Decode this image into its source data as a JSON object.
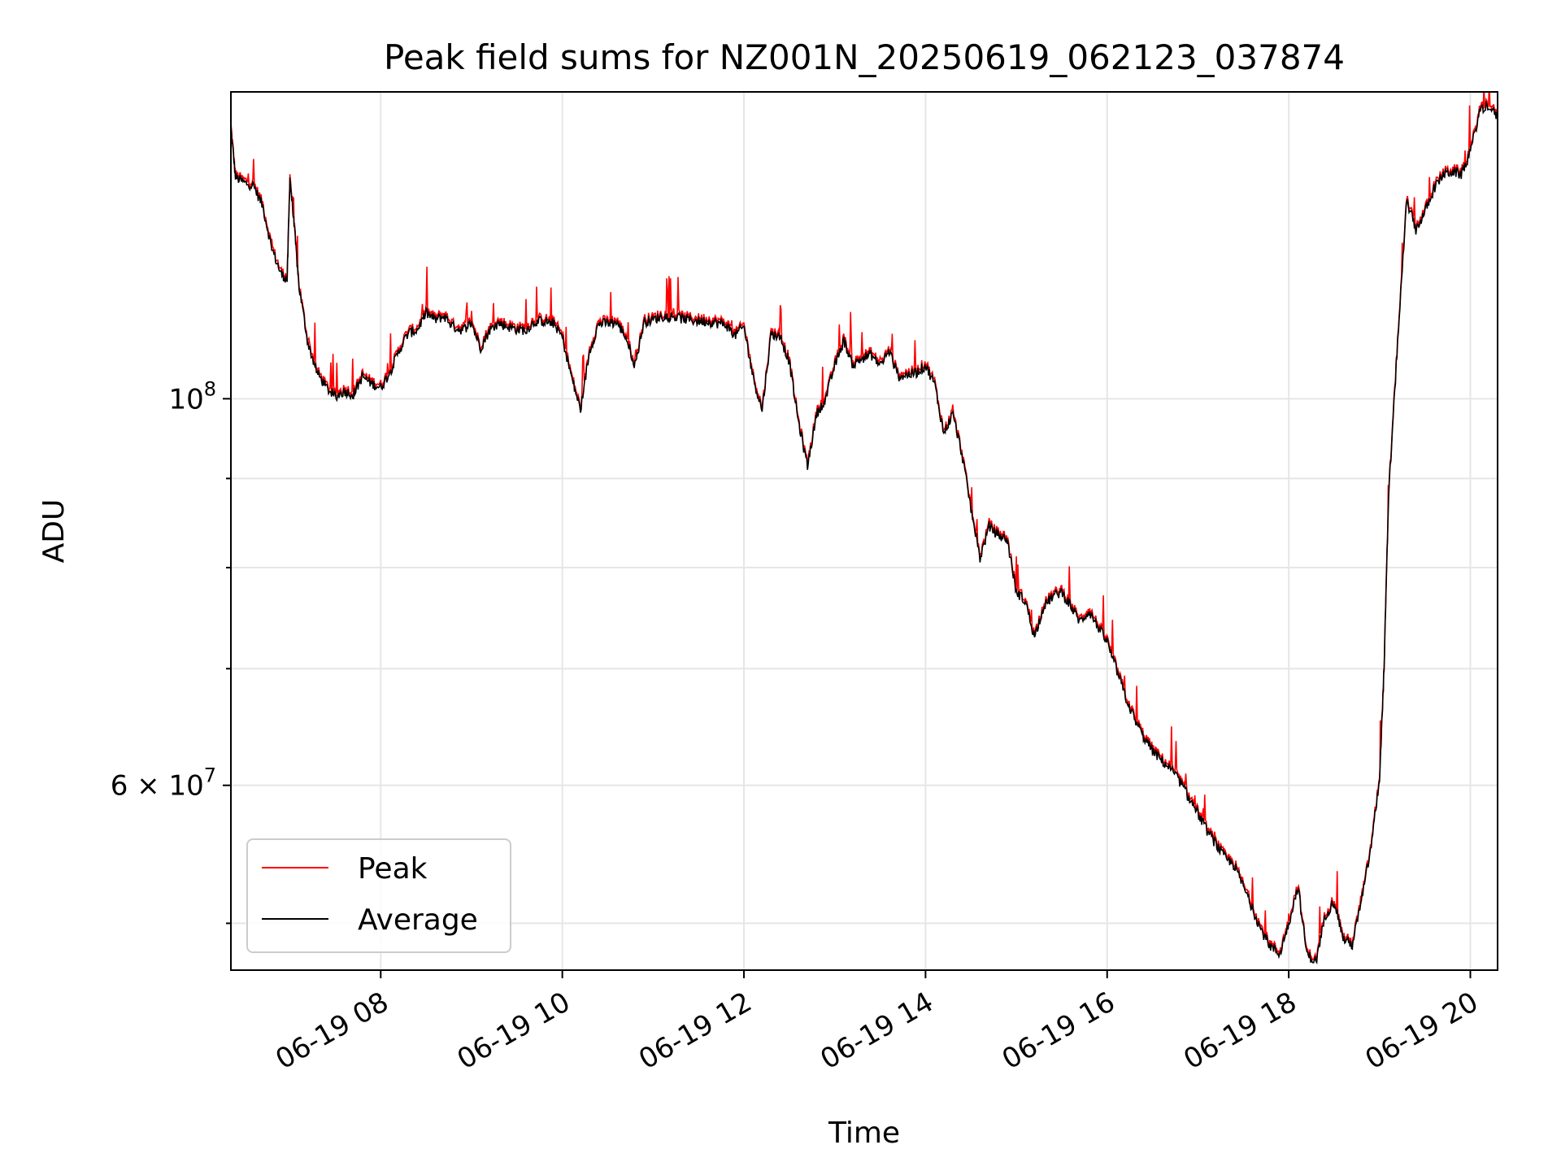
{
  "chart_data": {
    "type": "line",
    "title": "Peak field sums for NZ001N_20250619_062123_037874",
    "xlabel": "Time",
    "ylabel": "ADU",
    "y_scale": "log",
    "ylim": [
      47000000,
      150000000
    ],
    "xlim_hours": [
      6.35,
      20.3
    ],
    "grid": true,
    "legend_position": "lower-left",
    "x_ticks": [
      {
        "hour": 8,
        "label": "06-19 08"
      },
      {
        "hour": 10,
        "label": "06-19 10"
      },
      {
        "hour": 12,
        "label": "06-19 12"
      },
      {
        "hour": 14,
        "label": "06-19 14"
      },
      {
        "hour": 16,
        "label": "06-19 16"
      },
      {
        "hour": 18,
        "label": "06-19 18"
      },
      {
        "hour": 20,
        "label": "06-19 20"
      }
    ],
    "y_major_ticks": [
      {
        "value": 100000000,
        "base": "10",
        "exp": "8",
        "coef": ""
      },
      {
        "value": 60000000,
        "base": "10",
        "exp": "7",
        "coef": "6 × "
      }
    ],
    "y_minor_ticks": [
      50000000,
      70000000,
      80000000,
      90000000
    ],
    "series": [
      {
        "name": "Peak",
        "color": "#ff0000"
      },
      {
        "name": "Average",
        "color": "#000000"
      }
    ],
    "x_hours": [
      6.35,
      6.4,
      6.5,
      6.6,
      6.7,
      6.8,
      6.9,
      6.97,
      7.0,
      7.05,
      7.1,
      7.2,
      7.3,
      7.4,
      7.5,
      7.6,
      7.7,
      7.8,
      7.9,
      8.0,
      8.1,
      8.2,
      8.3,
      8.4,
      8.5,
      8.6,
      8.7,
      8.8,
      8.9,
      9.0,
      9.1,
      9.2,
      9.3,
      9.4,
      9.5,
      9.6,
      9.7,
      9.8,
      9.9,
      10.0,
      10.1,
      10.2,
      10.3,
      10.4,
      10.5,
      10.6,
      10.7,
      10.8,
      10.9,
      11.0,
      11.1,
      11.2,
      11.3,
      11.4,
      11.5,
      11.6,
      11.7,
      11.8,
      11.9,
      12.0,
      12.1,
      12.2,
      12.3,
      12.4,
      12.5,
      12.6,
      12.7,
      12.8,
      12.9,
      13.0,
      13.1,
      13.2,
      13.3,
      13.4,
      13.5,
      13.6,
      13.7,
      13.8,
      13.9,
      14.0,
      14.1,
      14.2,
      14.3,
      14.4,
      14.5,
      14.6,
      14.7,
      14.8,
      14.9,
      15.0,
      15.1,
      15.2,
      15.3,
      15.4,
      15.5,
      15.6,
      15.7,
      15.8,
      15.9,
      16.0,
      16.1,
      16.2,
      16.3,
      16.4,
      16.5,
      16.6,
      16.7,
      16.8,
      16.9,
      17.0,
      17.1,
      17.2,
      17.3,
      17.4,
      17.5,
      17.6,
      17.7,
      17.8,
      17.9,
      18.0,
      18.1,
      18.2,
      18.3,
      18.4,
      18.5,
      18.6,
      18.7,
      18.8,
      18.9,
      19.0,
      19.05,
      19.1,
      19.2,
      19.3,
      19.4,
      19.5,
      19.6,
      19.7,
      19.8,
      19.9,
      20.0,
      20.1,
      20.2,
      20.3
    ],
    "average": [
      143000000,
      134000000,
      133000000,
      132500000,
      129000000,
      122000000,
      118000000,
      117000000,
      134000000,
      125000000,
      116000000,
      107500000,
      103500000,
      101500000,
      100300000,
      101000000,
      100600000,
      103000000,
      102000000,
      101500000,
      103500000,
      106500000,
      109000000,
      109500000,
      112000000,
      111000000,
      111500000,
      110000000,
      109500000,
      110500000,
      107000000,
      109500000,
      110500000,
      110000000,
      109600000,
      109500000,
      110800000,
      110800000,
      110500000,
      108500000,
      103000000,
      98500000,
      106500000,
      110400000,
      110500000,
      110600000,
      108500000,
      104500000,
      110700000,
      111000000,
      111500000,
      111500000,
      111200000,
      111000000,
      110800000,
      110800000,
      110500000,
      110300000,
      108700000,
      110000000,
      103000000,
      98500000,
      109000000,
      108500000,
      105000000,
      97000000,
      91500000,
      98000000,
      100000000,
      104500000,
      108000000,
      104500000,
      105500000,
      106000000,
      104500000,
      106500000,
      103000000,
      103200000,
      103500000,
      104500000,
      102000000,
      95500000,
      98000000,
      93000000,
      86500000,
      81000000,
      84500000,
      83500000,
      83000000,
      77500000,
      76500000,
      73000000,
      76000000,
      77000000,
      77500000,
      76000000,
      74500000,
      75500000,
      74000000,
      72500000,
      70000000,
      67500000,
      65500000,
      64000000,
      62800000,
      62000000,
      61300000,
      60300000,
      59000000,
      57800000,
      56500000,
      55500000,
      54500000,
      54000000,
      52500000,
      51000000,
      49500000,
      48500000,
      48000000,
      50000000,
      52500000,
      48000000,
      47500000,
      50500000,
      51500000,
      49000000,
      48600000,
      51500000,
      55000000,
      60500000,
      70000000,
      88000000,
      108000000,
      130000000,
      125000000,
      128000000,
      132000000,
      134500000,
      135000000,
      134500000,
      138500000,
      146000000,
      147500000,
      145000000
    ]
  }
}
